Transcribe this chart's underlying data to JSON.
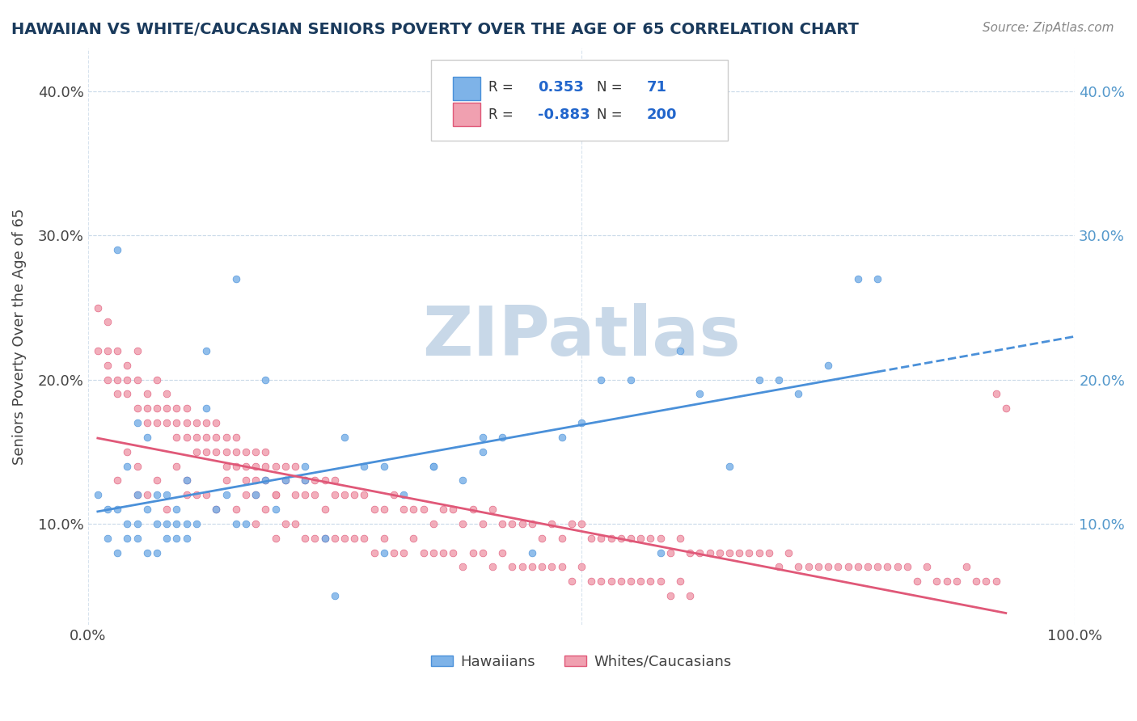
{
  "title": "HAWAIIAN VS WHITE/CAUCASIAN SENIORS POVERTY OVER THE AGE OF 65 CORRELATION CHART",
  "source_text": "Source: ZipAtlas.com",
  "ylabel": "Seniors Poverty Over the Age of 65",
  "xlabel": "",
  "xlim": [
    0,
    1.0
  ],
  "ylim": [
    0.03,
    0.43
  ],
  "xticks": [
    0.0,
    0.1,
    0.2,
    0.3,
    0.4,
    0.5,
    0.6,
    0.7,
    0.8,
    0.9,
    1.0
  ],
  "xticklabels": [
    "0.0%",
    "",
    "",
    "",
    "",
    "",
    "",
    "",
    "",
    "",
    "100.0%"
  ],
  "ytick_positions": [
    0.1,
    0.2,
    0.3,
    0.4
  ],
  "ytick_labels": [
    "10.0%",
    "20.0%",
    "30.0%",
    "40.0%"
  ],
  "legend_R1": "0.353",
  "legend_N1": "71",
  "legend_R2": "-0.883",
  "legend_N2": "200",
  "hawaiian_color": "#7eb3e8",
  "white_color": "#f0a0b0",
  "trend_blue": "#4a90d9",
  "trend_pink": "#e05878",
  "watermark": "ZIPatlas",
  "watermark_color": "#c8d8e8",
  "background_color": "#ffffff",
  "grid_color": "#c8d8e8",
  "title_color": "#1a3a5c",
  "hawaiians_label": "Hawaiians",
  "whites_label": "Whites/Caucasians",
  "hawaiian_scatter_x": [
    0.01,
    0.02,
    0.02,
    0.03,
    0.03,
    0.04,
    0.04,
    0.05,
    0.05,
    0.05,
    0.06,
    0.06,
    0.07,
    0.07,
    0.08,
    0.08,
    0.09,
    0.09,
    0.1,
    0.1,
    0.11,
    0.12,
    0.13,
    0.14,
    0.15,
    0.16,
    0.17,
    0.18,
    0.19,
    0.2,
    0.22,
    0.24,
    0.26,
    0.28,
    0.3,
    0.32,
    0.35,
    0.38,
    0.4,
    0.42,
    0.45,
    0.48,
    0.5,
    0.52,
    0.55,
    0.58,
    0.6,
    0.62,
    0.65,
    0.68,
    0.7,
    0.72,
    0.75,
    0.78,
    0.8,
    0.03,
    0.04,
    0.05,
    0.06,
    0.07,
    0.08,
    0.09,
    0.1,
    0.12,
    0.15,
    0.18,
    0.22,
    0.25,
    0.3,
    0.35,
    0.4
  ],
  "hawaiian_scatter_y": [
    0.12,
    0.09,
    0.11,
    0.11,
    0.08,
    0.1,
    0.09,
    0.12,
    0.1,
    0.09,
    0.11,
    0.08,
    0.1,
    0.08,
    0.12,
    0.09,
    0.11,
    0.09,
    0.13,
    0.1,
    0.1,
    0.22,
    0.11,
    0.12,
    0.27,
    0.1,
    0.12,
    0.2,
    0.11,
    0.13,
    0.13,
    0.09,
    0.16,
    0.14,
    0.14,
    0.12,
    0.14,
    0.13,
    0.16,
    0.16,
    0.08,
    0.16,
    0.17,
    0.2,
    0.2,
    0.08,
    0.22,
    0.19,
    0.14,
    0.2,
    0.2,
    0.19,
    0.21,
    0.27,
    0.27,
    0.29,
    0.14,
    0.17,
    0.16,
    0.12,
    0.1,
    0.1,
    0.09,
    0.18,
    0.1,
    0.13,
    0.14,
    0.05,
    0.08,
    0.14,
    0.15
  ],
  "white_scatter_x": [
    0.01,
    0.01,
    0.02,
    0.02,
    0.02,
    0.03,
    0.03,
    0.03,
    0.04,
    0.04,
    0.04,
    0.05,
    0.05,
    0.05,
    0.06,
    0.06,
    0.06,
    0.07,
    0.07,
    0.07,
    0.08,
    0.08,
    0.08,
    0.09,
    0.09,
    0.09,
    0.1,
    0.1,
    0.1,
    0.11,
    0.11,
    0.11,
    0.12,
    0.12,
    0.12,
    0.13,
    0.13,
    0.13,
    0.14,
    0.14,
    0.14,
    0.15,
    0.15,
    0.15,
    0.16,
    0.16,
    0.16,
    0.17,
    0.17,
    0.17,
    0.18,
    0.18,
    0.18,
    0.19,
    0.19,
    0.2,
    0.2,
    0.21,
    0.21,
    0.22,
    0.22,
    0.23,
    0.23,
    0.24,
    0.24,
    0.25,
    0.25,
    0.26,
    0.27,
    0.28,
    0.29,
    0.3,
    0.31,
    0.32,
    0.33,
    0.34,
    0.35,
    0.36,
    0.37,
    0.38,
    0.39,
    0.4,
    0.41,
    0.42,
    0.43,
    0.44,
    0.45,
    0.46,
    0.47,
    0.48,
    0.49,
    0.5,
    0.51,
    0.52,
    0.53,
    0.54,
    0.55,
    0.56,
    0.57,
    0.58,
    0.59,
    0.6,
    0.61,
    0.62,
    0.63,
    0.64,
    0.65,
    0.66,
    0.67,
    0.68,
    0.69,
    0.7,
    0.71,
    0.72,
    0.73,
    0.74,
    0.75,
    0.76,
    0.77,
    0.78,
    0.79,
    0.8,
    0.81,
    0.82,
    0.83,
    0.84,
    0.85,
    0.86,
    0.87,
    0.88,
    0.89,
    0.9,
    0.91,
    0.92,
    0.02,
    0.03,
    0.04,
    0.05,
    0.05,
    0.06,
    0.07,
    0.08,
    0.09,
    0.1,
    0.1,
    0.11,
    0.12,
    0.13,
    0.14,
    0.15,
    0.16,
    0.17,
    0.18,
    0.19,
    0.2,
    0.21,
    0.22,
    0.23,
    0.24,
    0.25,
    0.26,
    0.27,
    0.28,
    0.29,
    0.3,
    0.31,
    0.32,
    0.33,
    0.34,
    0.35,
    0.36,
    0.37,
    0.38,
    0.39,
    0.4,
    0.41,
    0.42,
    0.43,
    0.44,
    0.45,
    0.46,
    0.47,
    0.48,
    0.49,
    0.5,
    0.51,
    0.52,
    0.53,
    0.54,
    0.55,
    0.56,
    0.57,
    0.58,
    0.59,
    0.6,
    0.61,
    0.92,
    0.93,
    0.17,
    0.19
  ],
  "white_scatter_y": [
    0.25,
    0.22,
    0.22,
    0.2,
    0.24,
    0.22,
    0.19,
    0.2,
    0.21,
    0.2,
    0.19,
    0.2,
    0.18,
    0.22,
    0.18,
    0.19,
    0.17,
    0.2,
    0.18,
    0.17,
    0.19,
    0.17,
    0.18,
    0.17,
    0.18,
    0.16,
    0.18,
    0.16,
    0.17,
    0.17,
    0.16,
    0.15,
    0.17,
    0.16,
    0.15,
    0.17,
    0.15,
    0.16,
    0.16,
    0.15,
    0.14,
    0.15,
    0.14,
    0.16,
    0.15,
    0.14,
    0.13,
    0.15,
    0.14,
    0.13,
    0.14,
    0.13,
    0.15,
    0.14,
    0.12,
    0.14,
    0.13,
    0.14,
    0.12,
    0.13,
    0.12,
    0.13,
    0.12,
    0.13,
    0.11,
    0.12,
    0.13,
    0.12,
    0.12,
    0.12,
    0.11,
    0.11,
    0.12,
    0.11,
    0.11,
    0.11,
    0.1,
    0.11,
    0.11,
    0.1,
    0.11,
    0.1,
    0.11,
    0.1,
    0.1,
    0.1,
    0.1,
    0.09,
    0.1,
    0.09,
    0.1,
    0.1,
    0.09,
    0.09,
    0.09,
    0.09,
    0.09,
    0.09,
    0.09,
    0.09,
    0.08,
    0.09,
    0.08,
    0.08,
    0.08,
    0.08,
    0.08,
    0.08,
    0.08,
    0.08,
    0.08,
    0.07,
    0.08,
    0.07,
    0.07,
    0.07,
    0.07,
    0.07,
    0.07,
    0.07,
    0.07,
    0.07,
    0.07,
    0.07,
    0.07,
    0.06,
    0.07,
    0.06,
    0.06,
    0.06,
    0.07,
    0.06,
    0.06,
    0.06,
    0.21,
    0.13,
    0.15,
    0.12,
    0.14,
    0.12,
    0.13,
    0.11,
    0.14,
    0.12,
    0.13,
    0.12,
    0.12,
    0.11,
    0.13,
    0.11,
    0.12,
    0.1,
    0.11,
    0.09,
    0.1,
    0.1,
    0.09,
    0.09,
    0.09,
    0.09,
    0.09,
    0.09,
    0.09,
    0.08,
    0.09,
    0.08,
    0.08,
    0.09,
    0.08,
    0.08,
    0.08,
    0.08,
    0.07,
    0.08,
    0.08,
    0.07,
    0.08,
    0.07,
    0.07,
    0.07,
    0.07,
    0.07,
    0.07,
    0.06,
    0.07,
    0.06,
    0.06,
    0.06,
    0.06,
    0.06,
    0.06,
    0.06,
    0.06,
    0.05,
    0.06,
    0.05,
    0.19,
    0.18,
    0.12,
    0.12
  ]
}
